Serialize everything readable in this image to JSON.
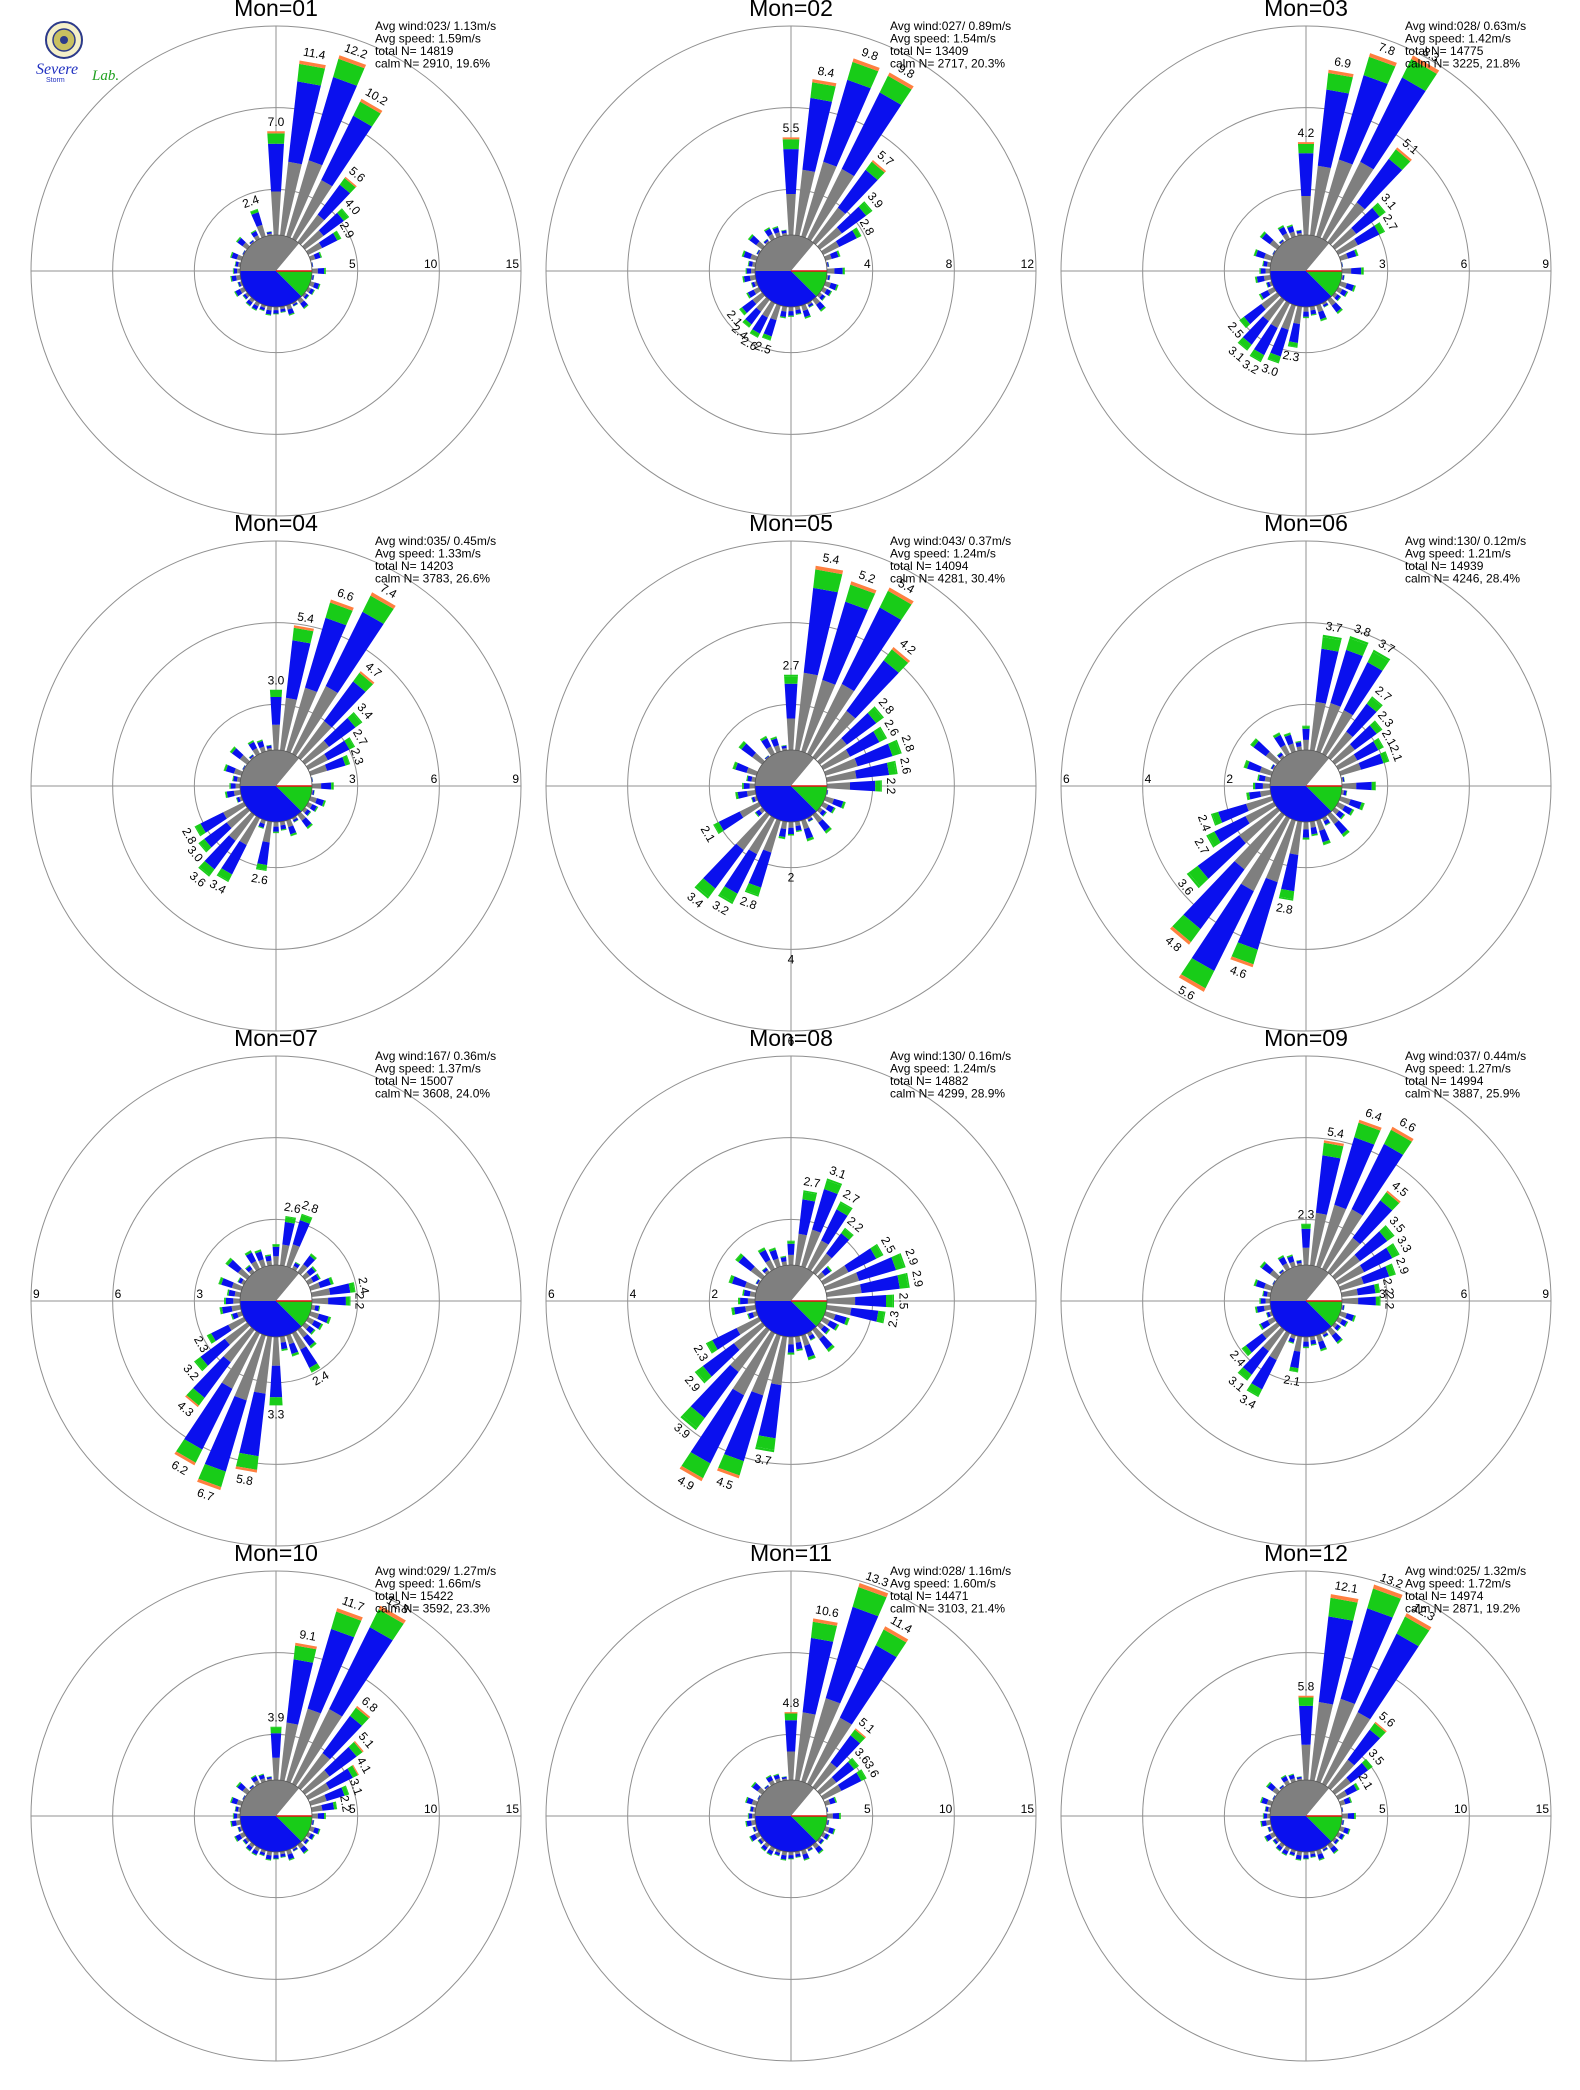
{
  "logo": {
    "line1": "Severe",
    "line2": "Storm",
    "line3": "Lab."
  },
  "colors": {
    "blue": "#0a10ee",
    "green": "#18cc18",
    "gray": "#7f7f7f",
    "orange": "#ff7f3f",
    "red": "#e01010",
    "ring": "#909090"
  },
  "chart_data": [
    {
      "type": "polar-bar",
      "title": "Mon=01",
      "info": [
        "Avg wind:023/ 1.13m/s",
        "Avg speed: 1.59m/s",
        "total N=      14819",
        "calm N=   2910,  19.6%"
      ],
      "rings": [
        5,
        10,
        15
      ],
      "ring_label_side": "right",
      "calm": {
        "blue": 0.45,
        "green": 0.1,
        "white": 0.2
      },
      "peaks": [
        {
          "angle": 0,
          "value": 7.0,
          "label": "7.0"
        },
        {
          "angle": 10,
          "value": 11.4,
          "label": "11.4"
        },
        {
          "angle": 20,
          "value": 12.2,
          "label": "12.2"
        },
        {
          "angle": 30,
          "value": 10.2,
          "label": "10.2"
        },
        {
          "angle": 40,
          "value": 5.6,
          "label": "5.6"
        },
        {
          "angle": 50,
          "value": 4.0,
          "label": "4.0"
        },
        {
          "angle": 60,
          "value": 2.9,
          "label": "2.9"
        },
        {
          "angle": 340,
          "value": 2.4,
          "label": "2.4"
        }
      ],
      "floor": 1.1
    },
    {
      "type": "polar-bar",
      "title": "Mon=02",
      "info": [
        "Avg wind:027/ 0.89m/s",
        "Avg speed: 1.54m/s",
        "total N=      13409",
        "calm N=   2717,  20.3%"
      ],
      "rings": [
        4,
        8,
        12
      ],
      "ring_label_side": "right",
      "calm": {
        "blue": 0.45,
        "green": 0.1,
        "white": 0.2
      },
      "peaks": [
        {
          "angle": 0,
          "value": 5.5,
          "label": "5.5"
        },
        {
          "angle": 10,
          "value": 8.4,
          "label": "8.4"
        },
        {
          "angle": 20,
          "value": 9.8,
          "label": "9.8"
        },
        {
          "angle": 30,
          "value": 9.8,
          "label": "9.8"
        },
        {
          "angle": 40,
          "value": 5.7,
          "label": "5.7"
        },
        {
          "angle": 50,
          "value": 3.9,
          "label": "3.9"
        },
        {
          "angle": 60,
          "value": 2.8,
          "label": "2.8"
        },
        {
          "angle": 200,
          "value": 2.5,
          "label": "2.5"
        },
        {
          "angle": 210,
          "value": 2.6,
          "label": "2.6"
        },
        {
          "angle": 220,
          "value": 2.4,
          "label": "2.4"
        },
        {
          "angle": 230,
          "value": 2.1,
          "label": "2.1"
        }
      ],
      "floor": 1.2
    },
    {
      "type": "polar-bar",
      "title": "Mon=03",
      "info": [
        "Avg wind:028/ 0.63m/s",
        "Avg speed: 1.42m/s",
        "total N=      14775",
        "calm N=   3225,  21.8%"
      ],
      "rings": [
        3,
        6,
        9
      ],
      "ring_label_side": "right",
      "calm": {
        "blue": 0.45,
        "green": 0.1,
        "white": 0.2
      },
      "peaks": [
        {
          "angle": 0,
          "value": 4.2,
          "label": "4.2"
        },
        {
          "angle": 10,
          "value": 6.9,
          "label": "6.9"
        },
        {
          "angle": 20,
          "value": 7.8,
          "label": "7.8"
        },
        {
          "angle": 30,
          "value": 8.3,
          "label": "8.3"
        },
        {
          "angle": 40,
          "value": 5.1,
          "label": "5.1"
        },
        {
          "angle": 50,
          "value": 3.1,
          "label": "3.1"
        },
        {
          "angle": 60,
          "value": 2.7,
          "label": "2.7"
        },
        {
          "angle": 190,
          "value": 2.3,
          "label": "2.3"
        },
        {
          "angle": 200,
          "value": 3.0,
          "label": "3.0"
        },
        {
          "angle": 210,
          "value": 3.2,
          "label": "3.2"
        },
        {
          "angle": 220,
          "value": 3.1,
          "label": "3.1"
        },
        {
          "angle": 230,
          "value": 2.5,
          "label": "2.5"
        }
      ],
      "floor": 1.2
    },
    {
      "type": "polar-bar",
      "title": "Mon=04",
      "info": [
        "Avg wind:035/ 0.45m/s",
        "Avg speed: 1.33m/s",
        "total N=      14203",
        "calm N=   3783,  26.6%"
      ],
      "rings": [
        3,
        6,
        9
      ],
      "ring_label_side": "right",
      "calm": {
        "blue": 0.45,
        "green": 0.1,
        "white": 0.2
      },
      "peaks": [
        {
          "angle": 0,
          "value": 3.0,
          "label": "3.0"
        },
        {
          "angle": 10,
          "value": 5.4,
          "label": "5.4"
        },
        {
          "angle": 20,
          "value": 6.6,
          "label": "6.6"
        },
        {
          "angle": 30,
          "value": 7.4,
          "label": "7.4"
        },
        {
          "angle": 40,
          "value": 4.7,
          "label": "4.7"
        },
        {
          "angle": 50,
          "value": 3.4,
          "label": "3.4"
        },
        {
          "angle": 60,
          "value": 2.7,
          "label": "2.7"
        },
        {
          "angle": 70,
          "value": 2.3,
          "label": "2.3"
        },
        {
          "angle": 190,
          "value": 2.6,
          "label": "2.6"
        },
        {
          "angle": 210,
          "value": 3.4,
          "label": "3.4"
        },
        {
          "angle": 220,
          "value": 3.6,
          "label": "3.6"
        },
        {
          "angle": 230,
          "value": 3.0,
          "label": "3.0"
        },
        {
          "angle": 240,
          "value": 2.8,
          "label": "2.8"
        }
      ],
      "floor": 1.2
    },
    {
      "type": "polar-bar",
      "title": "Mon=05",
      "info": [
        "Avg wind:043/ 0.37m/s",
        "Avg speed: 1.24m/s",
        "total N=      14094",
        "calm N=   4281,  30.4%"
      ],
      "rings": [
        2,
        4,
        6
      ],
      "ring_label_side": "bottom",
      "calm": {
        "blue": 0.45,
        "green": 0.1,
        "white": 0.2
      },
      "peaks": [
        {
          "angle": 0,
          "value": 2.7,
          "label": "2.7"
        },
        {
          "angle": 10,
          "value": 5.4,
          "label": "5.4"
        },
        {
          "angle": 20,
          "value": 5.2,
          "label": "5.2"
        },
        {
          "angle": 30,
          "value": 5.4,
          "label": "5.4"
        },
        {
          "angle": 40,
          "value": 4.2,
          "label": "4.2"
        },
        {
          "angle": 50,
          "value": 2.8,
          "label": "2.8"
        },
        {
          "angle": 60,
          "value": 2.6,
          "label": "2.6"
        },
        {
          "angle": 70,
          "value": 2.8,
          "label": "2.8"
        },
        {
          "angle": 80,
          "value": 2.6,
          "label": "2.6"
        },
        {
          "angle": 90,
          "value": 2.2,
          "label": "2.2"
        },
        {
          "angle": 200,
          "value": 2.8,
          "label": "2.8"
        },
        {
          "angle": 210,
          "value": 3.2,
          "label": "3.2"
        },
        {
          "angle": 220,
          "value": 3.4,
          "label": "3.4"
        },
        {
          "angle": 240,
          "value": 2.1,
          "label": "2.1"
        }
      ],
      "floor": 1.2
    },
    {
      "type": "polar-bar",
      "title": "Mon=06",
      "info": [
        "Avg wind:130/ 0.12m/s",
        "Avg speed: 1.21m/s",
        "total N=      14939",
        "calm N=   4246,  28.4%"
      ],
      "rings": [
        2,
        4,
        6
      ],
      "ring_label_side": "left",
      "calm": {
        "blue": 0.45,
        "green": 0.1,
        "white": 0.2
      },
      "peaks": [
        {
          "angle": 10,
          "value": 3.7,
          "label": "3.7"
        },
        {
          "angle": 20,
          "value": 3.8,
          "label": "3.8"
        },
        {
          "angle": 30,
          "value": 3.7,
          "label": "3.7"
        },
        {
          "angle": 40,
          "value": 2.7,
          "label": "2.7"
        },
        {
          "angle": 50,
          "value": 2.3,
          "label": "2.3"
        },
        {
          "angle": 60,
          "value": 2.1,
          "label": "2.1"
        },
        {
          "angle": 70,
          "value": 2.1,
          "label": "2.1"
        },
        {
          "angle": 190,
          "value": 2.8,
          "label": "2.8"
        },
        {
          "angle": 200,
          "value": 4.6,
          "label": "4.6"
        },
        {
          "angle": 210,
          "value": 5.6,
          "label": "5.6"
        },
        {
          "angle": 220,
          "value": 4.8,
          "label": "4.8"
        },
        {
          "angle": 230,
          "value": 3.6,
          "label": "3.6"
        },
        {
          "angle": 240,
          "value": 2.7,
          "label": "2.7"
        },
        {
          "angle": 250,
          "value": 2.4,
          "label": "2.4"
        }
      ],
      "floor": 1.3
    },
    {
      "type": "polar-bar",
      "title": "Mon=07",
      "info": [
        "Avg wind:167/ 0.36m/s",
        "Avg speed: 1.37m/s",
        "total N=      15007",
        "calm N=   3608,  24.0%"
      ],
      "rings": [
        3,
        6,
        9
      ],
      "ring_label_side": "left",
      "calm": {
        "blue": 0.45,
        "green": 0.1,
        "white": 0.2
      },
      "peaks": [
        {
          "angle": 10,
          "value": 2.6,
          "label": "2.6"
        },
        {
          "angle": 20,
          "value": 2.8,
          "label": "2.8"
        },
        {
          "angle": 80,
          "value": 2.4,
          "label": "2.4"
        },
        {
          "angle": 90,
          "value": 2.2,
          "label": "2.2"
        },
        {
          "angle": 150,
          "value": 2.4,
          "label": "2.4"
        },
        {
          "angle": 180,
          "value": 3.3,
          "label": "3.3"
        },
        {
          "angle": 190,
          "value": 5.8,
          "label": "5.8"
        },
        {
          "angle": 200,
          "value": 6.7,
          "label": "6.7"
        },
        {
          "angle": 210,
          "value": 6.2,
          "label": "6.2"
        },
        {
          "angle": 220,
          "value": 4.3,
          "label": "4.3"
        },
        {
          "angle": 230,
          "value": 3.2,
          "label": "3.2"
        },
        {
          "angle": 240,
          "value": 2.3,
          "label": "2.3"
        }
      ],
      "floor": 1.4
    },
    {
      "type": "polar-bar",
      "title": "Mon=08",
      "info": [
        "Avg wind:130/ 0.16m/s",
        "Avg speed: 1.24m/s",
        "total N=      14882",
        "calm N=   4299,  28.9%"
      ],
      "rings": [
        2,
        4,
        6
      ],
      "ring_label_side": "left",
      "calm": {
        "blue": 0.45,
        "green": 0.1,
        "white": 0.2
      },
      "peaks": [
        {
          "angle": 10,
          "value": 2.7,
          "label": "2.7"
        },
        {
          "angle": 20,
          "value": 3.1,
          "label": "3.1"
        },
        {
          "angle": 30,
          "value": 2.7,
          "label": "2.7"
        },
        {
          "angle": 40,
          "value": 2.2,
          "label": "2.2"
        },
        {
          "angle": 60,
          "value": 2.5,
          "label": "2.5"
        },
        {
          "angle": 70,
          "value": 2.9,
          "label": "2.9"
        },
        {
          "angle": 80,
          "value": 2.9,
          "label": "2.9"
        },
        {
          "angle": 90,
          "value": 2.5,
          "label": "2.5"
        },
        {
          "angle": 100,
          "value": 2.3,
          "label": "2.3"
        },
        {
          "angle": 190,
          "value": 3.7,
          "label": "3.7"
        },
        {
          "angle": 200,
          "value": 4.5,
          "label": "4.5"
        },
        {
          "angle": 210,
          "value": 4.9,
          "label": "4.9"
        },
        {
          "angle": 220,
          "value": 3.9,
          "label": "3.9"
        },
        {
          "angle": 230,
          "value": 2.9,
          "label": "2.9"
        },
        {
          "angle": 240,
          "value": 2.3,
          "label": "2.3"
        }
      ],
      "floor": 1.3
    },
    {
      "type": "polar-bar",
      "title": "Mon=09",
      "info": [
        "Avg wind:037/ 0.44m/s",
        "Avg speed: 1.27m/s",
        "total N=      14994",
        "calm N=   3887,  25.9%"
      ],
      "rings": [
        3,
        6,
        9
      ],
      "ring_label_side": "right",
      "calm": {
        "blue": 0.45,
        "green": 0.1,
        "white": 0.2
      },
      "peaks": [
        {
          "angle": 0,
          "value": 2.3,
          "label": "2.3"
        },
        {
          "angle": 10,
          "value": 5.4,
          "label": "5.4"
        },
        {
          "angle": 20,
          "value": 6.4,
          "label": "6.4"
        },
        {
          "angle": 30,
          "value": 6.6,
          "label": "6.6"
        },
        {
          "angle": 40,
          "value": 4.5,
          "label": "4.5"
        },
        {
          "angle": 50,
          "value": 3.5,
          "label": "3.5"
        },
        {
          "angle": 60,
          "value": 3.3,
          "label": "3.3"
        },
        {
          "angle": 70,
          "value": 2.9,
          "label": "2.9"
        },
        {
          "angle": 80,
          "value": 2.2,
          "label": "2.2"
        },
        {
          "angle": 90,
          "value": 2.2,
          "label": "2.2"
        },
        {
          "angle": 190,
          "value": 2.1,
          "label": "2.1"
        },
        {
          "angle": 210,
          "value": 3.4,
          "label": "3.4"
        },
        {
          "angle": 220,
          "value": 3.1,
          "label": "3.1"
        },
        {
          "angle": 230,
          "value": 2.4,
          "label": "2.4"
        }
      ],
      "floor": 1.2
    },
    {
      "type": "polar-bar",
      "title": "Mon=10",
      "info": [
        "Avg wind:029/ 1.27m/s",
        "Avg speed: 1.66m/s",
        "total N=      15422",
        "calm N=   3592,  23.3%"
      ],
      "rings": [
        5,
        10,
        15
      ],
      "ring_label_side": "right",
      "calm": {
        "blue": 0.45,
        "green": 0.1,
        "white": 0.2
      },
      "peaks": [
        {
          "angle": 0,
          "value": 3.9,
          "label": "3.9"
        },
        {
          "angle": 10,
          "value": 9.1,
          "label": "9.1"
        },
        {
          "angle": 20,
          "value": 11.7,
          "label": "11.7"
        },
        {
          "angle": 30,
          "value": 12.8,
          "label": "12.8"
        },
        {
          "angle": 40,
          "value": 6.8,
          "label": "6.8"
        },
        {
          "angle": 50,
          "value": 5.1,
          "label": "5.1"
        },
        {
          "angle": 60,
          "value": 4.1,
          "label": "4.1"
        },
        {
          "angle": 70,
          "value": 3.1,
          "label": "3.1"
        },
        {
          "angle": 80,
          "value": 2.2,
          "label": "2.2"
        }
      ],
      "floor": 1.1
    },
    {
      "type": "polar-bar",
      "title": "Mon=11",
      "info": [
        "Avg wind:028/ 1.16m/s",
        "Avg speed: 1.60m/s",
        "total N=      14471",
        "calm N=   3103,  21.4%"
      ],
      "rings": [
        5,
        10,
        15
      ],
      "ring_label_side": "right",
      "calm": {
        "blue": 0.45,
        "green": 0.1,
        "white": 0.2
      },
      "peaks": [
        {
          "angle": 0,
          "value": 4.8,
          "label": "4.8"
        },
        {
          "angle": 10,
          "value": 10.6,
          "label": "10.6"
        },
        {
          "angle": 20,
          "value": 13.3,
          "label": "13.3"
        },
        {
          "angle": 30,
          "value": 11.4,
          "label": "11.4"
        },
        {
          "angle": 40,
          "value": 5.1,
          "label": "5.1"
        },
        {
          "angle": 50,
          "value": 3.6,
          "label": "3.6"
        },
        {
          "angle": 60,
          "value": 3.6,
          "label": "3.6"
        }
      ],
      "floor": 1.1
    },
    {
      "type": "polar-bar",
      "title": "Mon=12",
      "info": [
        "Avg wind:025/ 1.32m/s",
        "Avg speed: 1.72m/s",
        "total N=      14974",
        "calm N=   2871,  19.2%"
      ],
      "rings": [
        5,
        10,
        15
      ],
      "ring_label_side": "right",
      "calm": {
        "blue": 0.45,
        "green": 0.1,
        "white": 0.2
      },
      "peaks": [
        {
          "angle": 0,
          "value": 5.8,
          "label": "5.8"
        },
        {
          "angle": 10,
          "value": 12.1,
          "label": "12.1"
        },
        {
          "angle": 20,
          "value": 13.2,
          "label": "13.2"
        },
        {
          "angle": 30,
          "value": 12.3,
          "label": "12.3"
        },
        {
          "angle": 40,
          "value": 5.6,
          "label": "5.6"
        },
        {
          "angle": 50,
          "value": 3.5,
          "label": "3.5"
        },
        {
          "angle": 60,
          "value": 2.1,
          "label": "2.1"
        }
      ],
      "floor": 1.1
    }
  ]
}
